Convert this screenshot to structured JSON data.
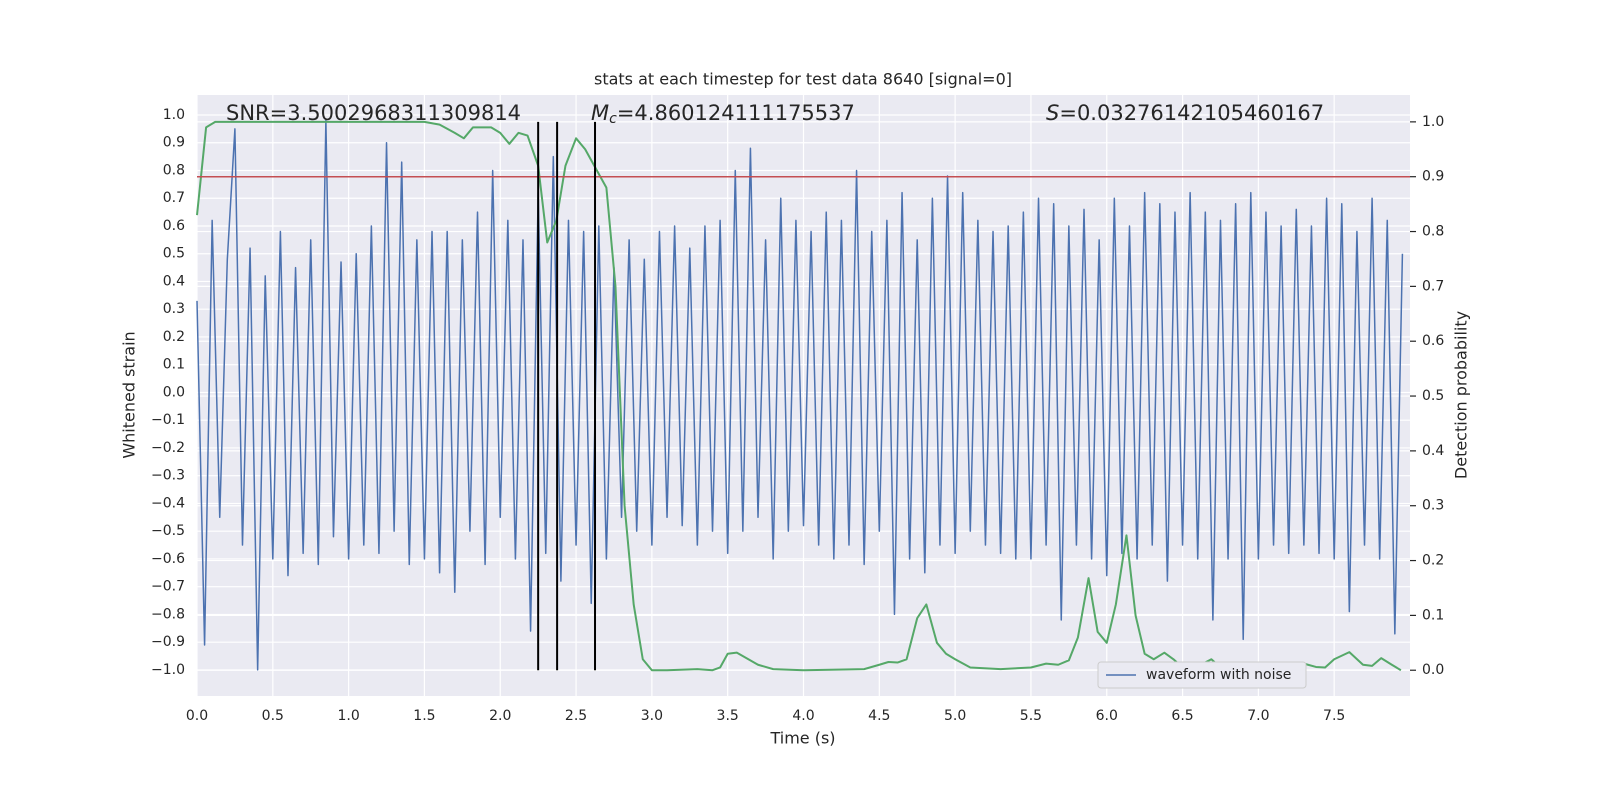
{
  "chart_data": {
    "type": "line",
    "title": "stats at each timestep for test data 8640 [signal=0]",
    "x_label": "Time (s)",
    "y_label": "Whitened strain",
    "y2_label": "Detection probability",
    "annotations": [
      {
        "text": "SNR=3.5002968311309814"
      },
      {
        "symbol": "M",
        "subscript": "c",
        "text": "=4.860124111175537"
      },
      {
        "symbol": "S",
        "text": "=0.03276142105460167"
      }
    ],
    "xlim": [
      0,
      8
    ],
    "ylim": [
      -1.094,
      1.072
    ],
    "y2lim": [
      -0.047,
      1.049
    ],
    "xticks": [
      {
        "value": 0,
        "label": "0.0"
      },
      {
        "value": 0.5,
        "label": "0.5"
      },
      {
        "value": 1,
        "label": "1.0"
      },
      {
        "value": 1.5,
        "label": "1.5"
      },
      {
        "value": 2,
        "label": "2.0"
      },
      {
        "value": 2.5,
        "label": "2.5"
      },
      {
        "value": 3,
        "label": "3.0"
      },
      {
        "value": 3.5,
        "label": "3.5"
      },
      {
        "value": 4,
        "label": "4.0"
      },
      {
        "value": 4.5,
        "label": "4.5"
      },
      {
        "value": 5,
        "label": "5.0"
      },
      {
        "value": 5.5,
        "label": "5.5"
      },
      {
        "value": 6,
        "label": "6.0"
      },
      {
        "value": 6.5,
        "label": "6.5"
      },
      {
        "value": 7,
        "label": "7.0"
      },
      {
        "value": 7.5,
        "label": "7.5"
      }
    ],
    "yticks": [
      {
        "value": 1,
        "label": "1.0"
      },
      {
        "value": 0.9,
        "label": "0.9"
      },
      {
        "value": 0.8,
        "label": "0.8"
      },
      {
        "value": 0.7,
        "label": "0.7"
      },
      {
        "value": 0.6,
        "label": "0.6"
      },
      {
        "value": 0.5,
        "label": "0.5"
      },
      {
        "value": 0.4,
        "label": "0.4"
      },
      {
        "value": 0.3,
        "label": "0.3"
      },
      {
        "value": 0.2,
        "label": "0.2"
      },
      {
        "value": 0.1,
        "label": "0.1"
      },
      {
        "value": 0,
        "label": "0.0"
      },
      {
        "value": -0.1,
        "label": "−0.1"
      },
      {
        "value": -0.2,
        "label": "−0.2"
      },
      {
        "value": -0.3,
        "label": "−0.3"
      },
      {
        "value": -0.4,
        "label": "−0.4"
      },
      {
        "value": -0.5,
        "label": "−0.5"
      },
      {
        "value": -0.6,
        "label": "−0.6"
      },
      {
        "value": -0.7,
        "label": "−0.7"
      },
      {
        "value": -0.8,
        "label": "−0.8"
      },
      {
        "value": -0.9,
        "label": "−0.9"
      },
      {
        "value": -1,
        "label": "−1.0"
      }
    ],
    "y2ticks": [
      {
        "value": 0,
        "label": "0.0"
      },
      {
        "value": 0.1,
        "label": "0.1"
      },
      {
        "value": 0.2,
        "label": "0.2"
      },
      {
        "value": 0.3,
        "label": "0.3"
      },
      {
        "value": 0.4,
        "label": "0.4"
      },
      {
        "value": 0.5,
        "label": "0.5"
      },
      {
        "value": 0.6,
        "label": "0.6"
      },
      {
        "value": 0.7,
        "label": "0.7"
      },
      {
        "value": 0.8,
        "label": "0.8"
      },
      {
        "value": 0.9,
        "label": "0.9"
      },
      {
        "value": 1,
        "label": "1.0"
      }
    ],
    "grid": true,
    "legend_loc": "lower right",
    "threshold": {
      "value": 0.9,
      "axis": "y2",
      "color": "#c44e52"
    },
    "vlines": {
      "values": [
        2.25,
        2.375,
        2.625
      ],
      "color": "#000000"
    },
    "series": [
      {
        "name": "waveform with noise",
        "color": "#4c72b0",
        "x": [
          0,
          0.05,
          0.1,
          0.15,
          0.2,
          0.25,
          0.3,
          0.35,
          0.4,
          0.45,
          0.5,
          0.55,
          0.6,
          0.65,
          0.7,
          0.75,
          0.8,
          0.85,
          0.9,
          0.95,
          1,
          1.05,
          1.1,
          1.15,
          1.2,
          1.25,
          1.3,
          1.35,
          1.4,
          1.45,
          1.5,
          1.55,
          1.6,
          1.65,
          1.7,
          1.75,
          1.8,
          1.85,
          1.9,
          1.95,
          2,
          2.05,
          2.1,
          2.15,
          2.2,
          2.25,
          2.3,
          2.35,
          2.4,
          2.45,
          2.5,
          2.55,
          2.6,
          2.65,
          2.7,
          2.75,
          2.8,
          2.85,
          2.9,
          2.95,
          3,
          3.05,
          3.1,
          3.15,
          3.2,
          3.25,
          3.3,
          3.35,
          3.4,
          3.45,
          3.5,
          3.55,
          3.6,
          3.65,
          3.7,
          3.75,
          3.8,
          3.85,
          3.9,
          3.95,
          4,
          4.05,
          4.1,
          4.15,
          4.2,
          4.25,
          4.3,
          4.35,
          4.4,
          4.45,
          4.5,
          4.55,
          4.6,
          4.65,
          4.7,
          4.75,
          4.8,
          4.85,
          4.9,
          4.95,
          5,
          5.05,
          5.1,
          5.15,
          5.2,
          5.25,
          5.3,
          5.35,
          5.4,
          5.45,
          5.5,
          5.55,
          5.6,
          5.65,
          5.7,
          5.75,
          5.8,
          5.85,
          5.9,
          5.95,
          6,
          6.05,
          6.1,
          6.15,
          6.2,
          6.25,
          6.3,
          6.35,
          6.4,
          6.45,
          6.5,
          6.55,
          6.6,
          6.65,
          6.7,
          6.75,
          6.8,
          6.85,
          6.9,
          6.95,
          7,
          7.05,
          7.1,
          7.15,
          7.2,
          7.25,
          7.3,
          7.35,
          7.4,
          7.45,
          7.5,
          7.55,
          7.6,
          7.65,
          7.7,
          7.75,
          7.8,
          7.85,
          7.9,
          7.95
        ],
        "values": [
          0.33,
          -0.91,
          0.62,
          -0.45,
          0.48,
          0.95,
          -0.55,
          0.52,
          -1.0,
          0.42,
          -0.6,
          0.58,
          -0.66,
          0.45,
          -0.58,
          0.55,
          -0.62,
          0.98,
          -0.52,
          0.47,
          -0.6,
          0.5,
          -0.55,
          0.6,
          -0.58,
          0.9,
          -0.5,
          0.83,
          -0.62,
          0.55,
          -0.6,
          0.58,
          -0.65,
          0.58,
          -0.72,
          0.55,
          -0.5,
          0.65,
          -0.62,
          0.8,
          -0.45,
          0.62,
          -0.6,
          0.55,
          -0.86,
          0.72,
          -0.58,
          0.85,
          -0.68,
          0.62,
          -0.55,
          0.58,
          -0.76,
          0.6,
          -0.6,
          0.45,
          -0.45,
          0.55,
          -0.5,
          0.48,
          -0.55,
          0.58,
          -0.45,
          0.6,
          -0.48,
          0.52,
          -0.55,
          0.6,
          -0.5,
          0.62,
          -0.58,
          0.8,
          -0.5,
          0.88,
          -0.45,
          0.55,
          -0.6,
          0.7,
          -0.5,
          0.62,
          -0.48,
          0.58,
          -0.55,
          0.65,
          -0.6,
          0.62,
          -0.55,
          0.8,
          -0.62,
          0.58,
          -0.5,
          0.62,
          -0.8,
          0.72,
          -0.6,
          0.55,
          -0.65,
          0.7,
          -0.55,
          0.78,
          -0.58,
          0.72,
          -0.5,
          0.62,
          -0.55,
          0.58,
          -0.58,
          0.6,
          -0.6,
          0.65,
          -0.6,
          0.7,
          -0.55,
          0.68,
          -0.82,
          0.6,
          -0.55,
          0.66,
          -0.6,
          0.55,
          -0.66,
          0.7,
          -0.58,
          0.6,
          -0.6,
          0.72,
          -0.55,
          0.68,
          -0.68,
          0.65,
          -0.55,
          0.72,
          -0.6,
          0.65,
          -0.82,
          0.62,
          -0.6,
          0.68,
          -0.89,
          0.72,
          -0.6,
          0.65,
          -0.55,
          0.6,
          -0.58,
          0.66,
          -0.55,
          0.6,
          -0.58,
          0.7,
          -0.6,
          0.68,
          -0.79,
          0.58,
          -0.55,
          0.7,
          -0.6,
          0.62,
          -0.87,
          0.5
        ]
      },
      {
        "color": "#55a868",
        "axis": "y2",
        "x": [
          0,
          0.06,
          0.12,
          0.2,
          0.4,
          0.6,
          0.8,
          1.0,
          1.2,
          1.4,
          1.5,
          1.6,
          1.7,
          1.76,
          1.82,
          1.94,
          2.0,
          2.06,
          2.12,
          2.18,
          2.25,
          2.31,
          2.37,
          2.43,
          2.5,
          2.56,
          2.62,
          2.7,
          2.76,
          2.82,
          2.88,
          2.94,
          3.0,
          3.1,
          3.3,
          3.4,
          3.45,
          3.5,
          3.56,
          3.7,
          3.8,
          4.0,
          4.4,
          4.5,
          4.56,
          4.62,
          4.68,
          4.75,
          4.81,
          4.88,
          4.94,
          5.0,
          5.1,
          5.3,
          5.5,
          5.6,
          5.68,
          5.75,
          5.81,
          5.88,
          5.94,
          6.0,
          6.06,
          6.13,
          6.19,
          6.25,
          6.31,
          6.38,
          6.44,
          6.5,
          6.56,
          6.62,
          6.69,
          6.75,
          6.81,
          6.9,
          7.0,
          7.1,
          7.2,
          7.3,
          7.38,
          7.44,
          7.5,
          7.6,
          7.69,
          7.75,
          7.81,
          7.88,
          7.94
        ],
        "values": [
          0.83,
          0.99,
          1.0,
          1.0,
          1.0,
          1.0,
          1.0,
          1.0,
          1.0,
          1.0,
          1.0,
          0.995,
          0.98,
          0.97,
          0.99,
          0.99,
          0.98,
          0.96,
          0.98,
          0.975,
          0.92,
          0.78,
          0.82,
          0.92,
          0.97,
          0.95,
          0.92,
          0.88,
          0.7,
          0.3,
          0.12,
          0.02,
          0.0,
          0.0,
          0.002,
          0.0,
          0.005,
          0.03,
          0.032,
          0.01,
          0.002,
          0.0,
          0.002,
          0.01,
          0.015,
          0.014,
          0.02,
          0.095,
          0.12,
          0.05,
          0.03,
          0.02,
          0.005,
          0.002,
          0.005,
          0.012,
          0.01,
          0.018,
          0.06,
          0.168,
          0.07,
          0.05,
          0.12,
          0.246,
          0.1,
          0.03,
          0.02,
          0.032,
          0.02,
          0.005,
          0.005,
          0.01,
          0.02,
          0.005,
          0.003,
          0.003,
          0.005,
          0.005,
          0.004,
          0.012,
          0.006,
          0.005,
          0.02,
          0.033,
          0.01,
          0.008,
          0.022,
          0.01,
          0.0
        ]
      }
    ]
  }
}
